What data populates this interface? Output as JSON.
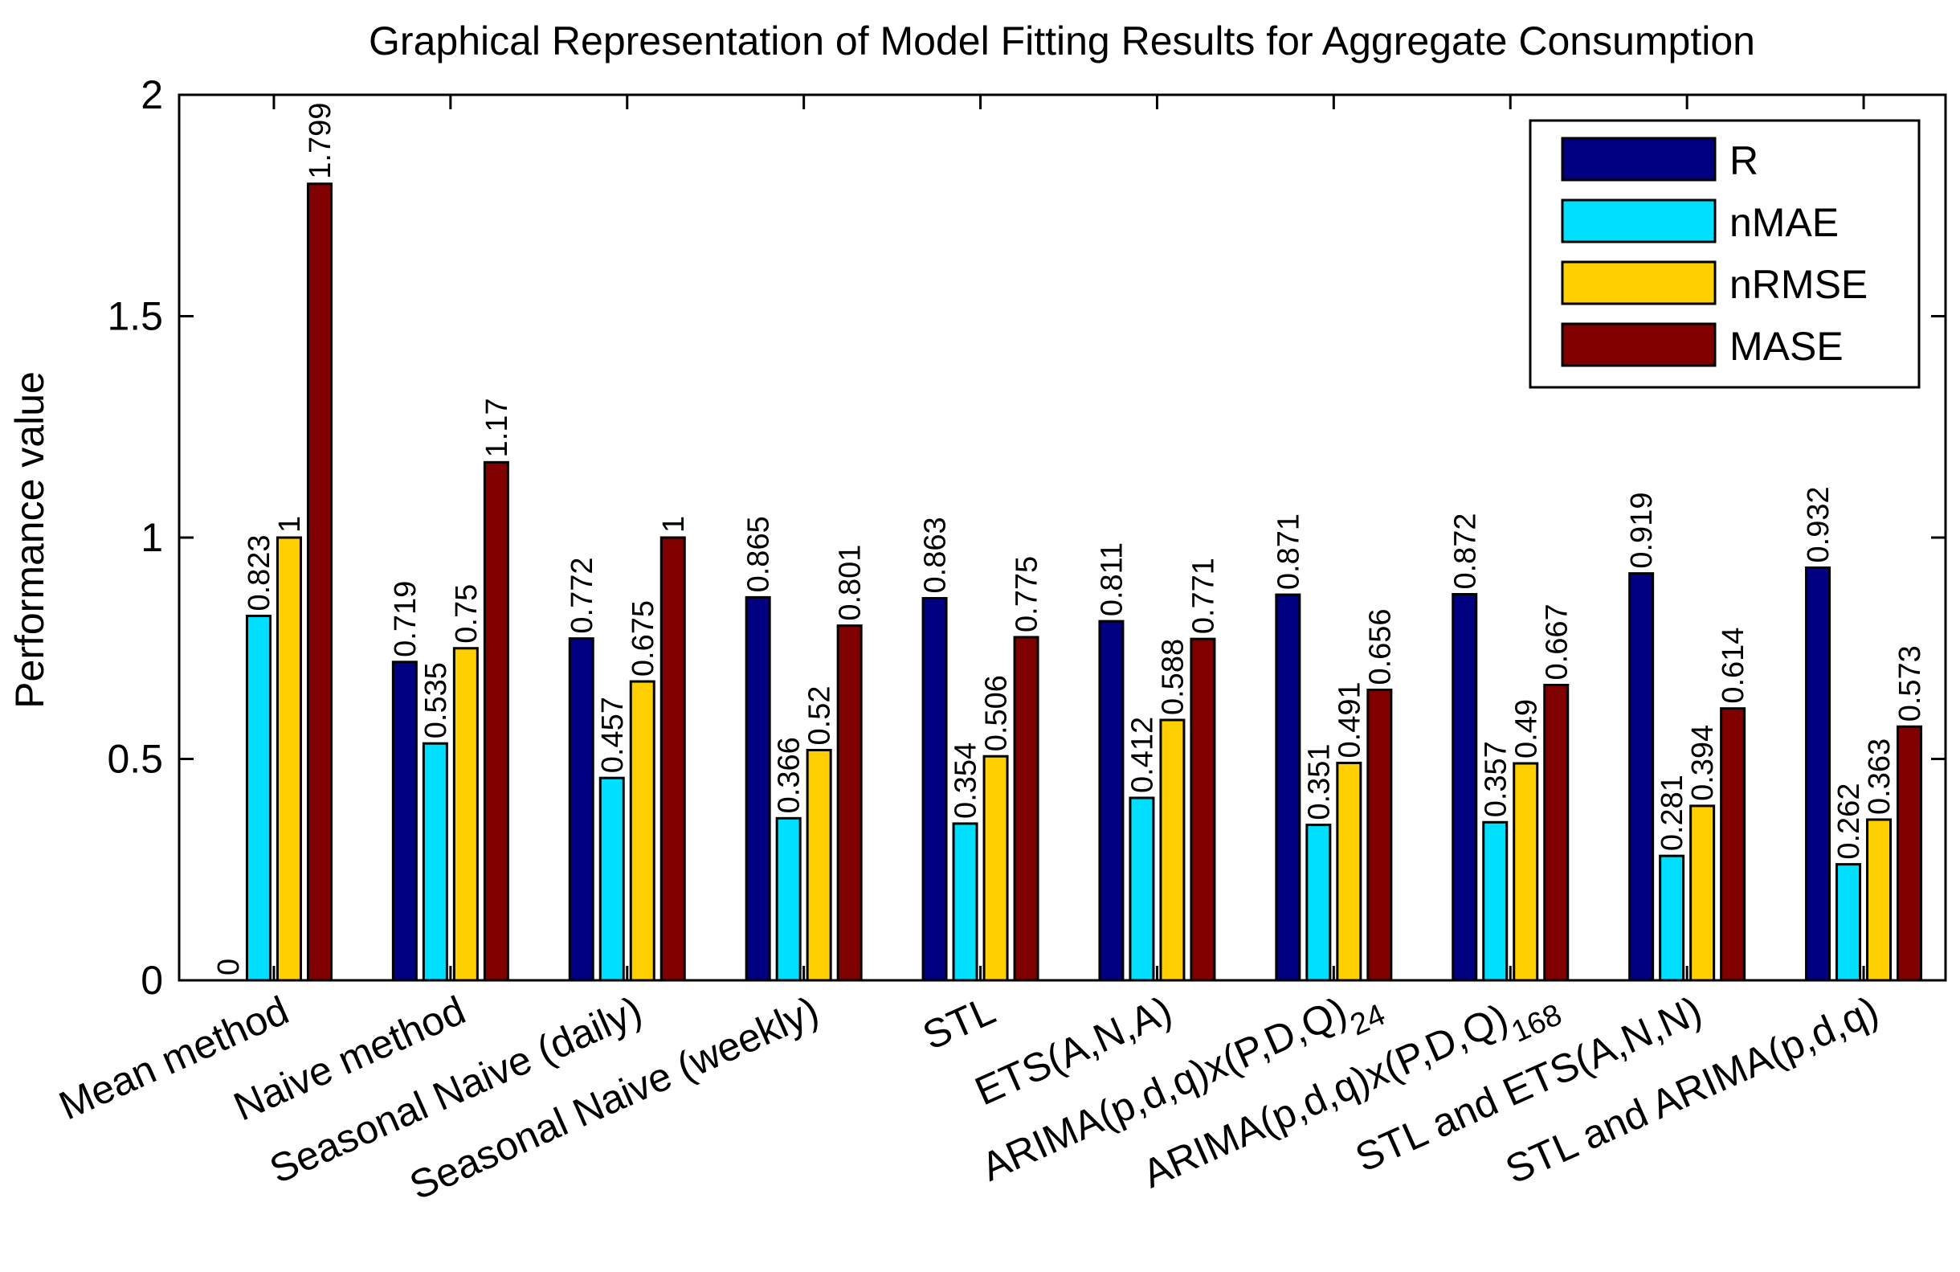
{
  "chart_data": {
    "type": "bar",
    "title": "Graphical Representation of Model Fitting Results for Aggregate Consumption",
    "xlabel": "",
    "ylabel": "Performance value",
    "ylim": [
      0,
      2
    ],
    "yticks": [
      "0",
      "0.5",
      "1",
      "1.5",
      "2"
    ],
    "categories": [
      "Mean method",
      "Naive method",
      "Seasonal Naive (daily)",
      "Seasonal Naive (weekly)",
      "STL",
      "ETS(A,N,A)",
      "ARIMA(p,d,q)x(P,D,Q)",
      "ARIMA(p,d,q)x(P,D,Q)",
      "STL and ETS(A,N,N)",
      "STL and ARIMA(p,d,q)"
    ],
    "category_subscripts": [
      "",
      "",
      "",
      "",
      "",
      "",
      "24",
      "168",
      "",
      ""
    ],
    "series": [
      {
        "name": "R",
        "color": "#000080",
        "values": [
          0,
          0.719,
          0.772,
          0.865,
          0.863,
          0.811,
          0.871,
          0.872,
          0.919,
          0.932
        ],
        "labels": [
          "0",
          "0.719",
          "0.772",
          "0.865",
          "0.863",
          "0.811",
          "0.871",
          "0.872",
          "0.919",
          "0.932"
        ]
      },
      {
        "name": "nMAE",
        "color": "#00DFFF",
        "values": [
          0.823,
          0.535,
          0.457,
          0.366,
          0.354,
          0.412,
          0.351,
          0.357,
          0.281,
          0.262
        ],
        "labels": [
          "0.823",
          "0.535",
          "0.457",
          "0.366",
          "0.354",
          "0.412",
          "0.351",
          "0.357",
          "0.281",
          "0.262"
        ]
      },
      {
        "name": "nRMSE",
        "color": "#FFCF00",
        "values": [
          1,
          0.75,
          0.675,
          0.52,
          0.506,
          0.588,
          0.491,
          0.49,
          0.394,
          0.363
        ],
        "labels": [
          "1",
          "0.75",
          "0.675",
          "0.52",
          "0.506",
          "0.588",
          "0.491",
          "0.49",
          "0.394",
          "0.363"
        ]
      },
      {
        "name": "MASE",
        "color": "#800000",
        "values": [
          1.799,
          1.17,
          1,
          0.801,
          0.775,
          0.771,
          0.656,
          0.667,
          0.614,
          0.573
        ],
        "labels": [
          "1.799",
          "1.17",
          "1",
          "0.801",
          "0.775",
          "0.771",
          "0.656",
          "0.667",
          "0.614",
          "0.573"
        ]
      }
    ],
    "legend_position": "top-right",
    "grid": false
  }
}
